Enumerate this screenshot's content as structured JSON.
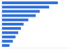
{
  "chart_data": {
    "type": "bar",
    "orientation": "horizontal",
    "categories": [
      null,
      null,
      null,
      null,
      null,
      null,
      null,
      null,
      null,
      null,
      null
    ],
    "values": [
      83,
      70,
      56,
      50,
      39,
      32,
      28,
      24,
      20,
      16,
      11
    ],
    "color": "#2f6fd8",
    "xlim": [
      0,
      100
    ],
    "grid": false,
    "tick_labels": false
  }
}
